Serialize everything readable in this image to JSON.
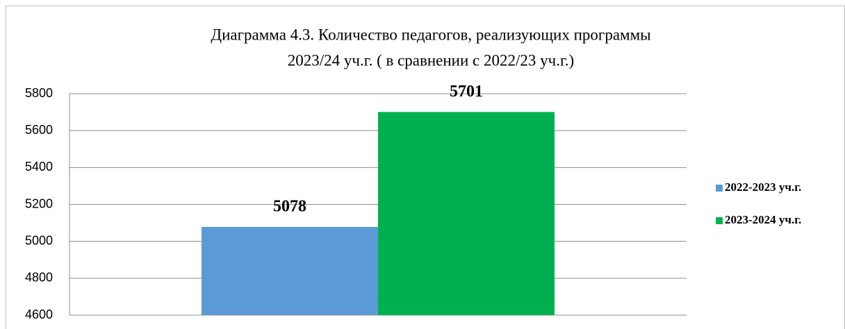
{
  "chart_data": {
    "type": "bar",
    "title": [
      "Диаграмма 4.3. Количество педагогов, реализующих программы",
      "2023/24 уч.г. ( в сравнении с 2022/23 уч.г.)"
    ],
    "categories": [
      null
    ],
    "series": [
      {
        "name": "2022-2023 уч.г.",
        "color": "#5b9bd5",
        "values": [
          5078
        ]
      },
      {
        "name": "2023-2024 уч.г.",
        "color": "#00b050",
        "values": [
          5701
        ]
      }
    ],
    "ylim": [
      4600,
      5800
    ],
    "yticks": [
      4600,
      4800,
      5000,
      5200,
      5400,
      5600,
      5800
    ],
    "grid": true,
    "legend": "right"
  }
}
